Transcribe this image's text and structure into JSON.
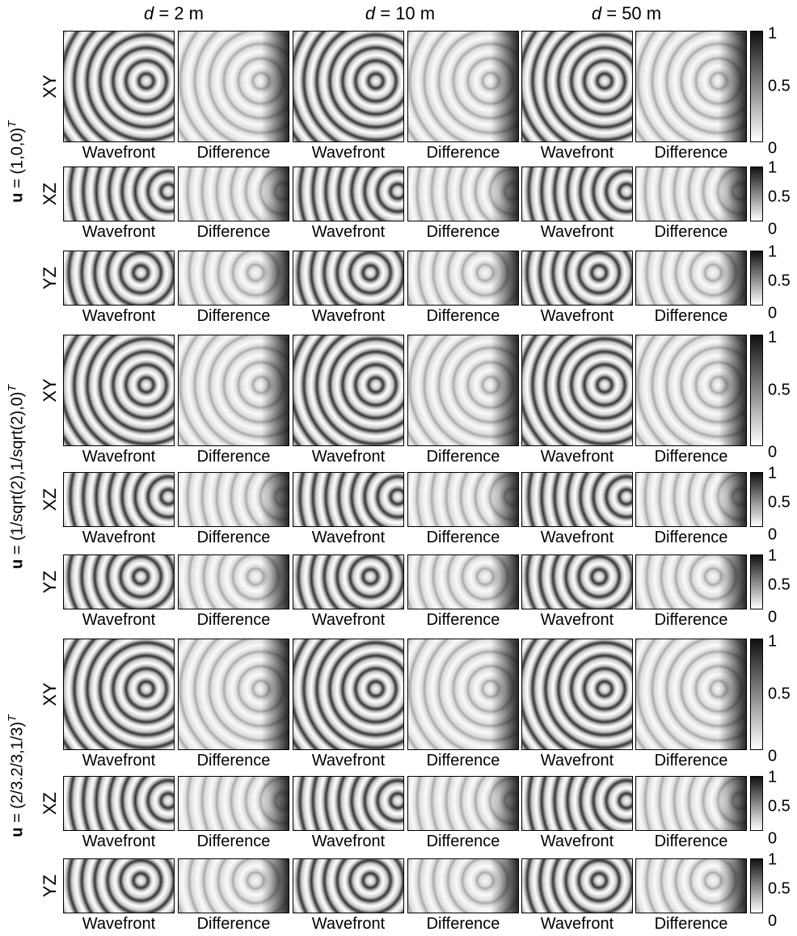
{
  "column_headers": [
    {
      "variable": "d",
      "text": " = 2 m"
    },
    {
      "variable": "d",
      "text": " = 10 m"
    },
    {
      "variable": "d",
      "text": " = 50 m"
    }
  ],
  "groups": [
    {
      "label": {
        "bold": "u",
        "text": " = (1,0,0)",
        "superscript": "T"
      },
      "rows": [
        {
          "plane": "XY",
          "captions": [
            "Wavefront",
            "Difference",
            "Wavefront",
            "Difference",
            "Wavefront",
            "Difference"
          ],
          "colorbar_ticks": [
            1,
            0.5,
            0
          ]
        },
        {
          "plane": "XZ",
          "captions": [
            "Wavefront",
            "Difference",
            "Wavefront",
            "Difference",
            "Wavefront",
            "Difference"
          ],
          "colorbar_ticks": [
            1,
            0.5,
            0
          ]
        },
        {
          "plane": "YZ",
          "captions": [
            "Wavefront",
            "Difference",
            "Wavefront",
            "Difference",
            "Wavefront",
            "Difference"
          ],
          "colorbar_ticks": [
            1,
            0.5,
            0
          ]
        }
      ]
    },
    {
      "label": {
        "bold": "u",
        "text": " = (1/sqrt(2),1/sqrt(2),0)",
        "superscript": "T"
      },
      "rows": [
        {
          "plane": "XY",
          "captions": [
            "Wavefront",
            "Difference",
            "Wavefront",
            "Difference",
            "Wavefront",
            "Difference"
          ],
          "colorbar_ticks": [
            1,
            0.5,
            0
          ]
        },
        {
          "plane": "XZ",
          "captions": [
            "Wavefront",
            "Difference",
            "Wavefront",
            "Difference",
            "Wavefront",
            "Difference"
          ],
          "colorbar_ticks": [
            1,
            0.5,
            0
          ]
        },
        {
          "plane": "YZ",
          "captions": [
            "Wavefront",
            "Difference",
            "Wavefront",
            "Difference",
            "Wavefront",
            "Difference"
          ],
          "colorbar_ticks": [
            1,
            0.5,
            0
          ]
        }
      ]
    },
    {
      "label": {
        "bold": "u",
        "text": " = (2/3.2/3,1/3)",
        "superscript": "T"
      },
      "rows": [
        {
          "plane": "XY",
          "captions": [
            "Wavefront",
            "Difference",
            "Wavefront",
            "Difference",
            "Wavefront",
            "Difference"
          ],
          "colorbar_ticks": [
            1,
            0.5,
            0
          ]
        },
        {
          "plane": "XZ",
          "captions": [
            "Wavefront",
            "Difference",
            "Wavefront",
            "Difference",
            "Wavefront",
            "Difference"
          ],
          "colorbar_ticks": [
            1,
            0.5,
            0
          ]
        },
        {
          "plane": "YZ",
          "captions": [
            "Wavefront",
            "Difference",
            "Wavefront",
            "Difference",
            "Wavefront",
            "Difference"
          ],
          "colorbar_ticks": [
            1,
            0.5,
            0
          ]
        }
      ]
    }
  ]
}
